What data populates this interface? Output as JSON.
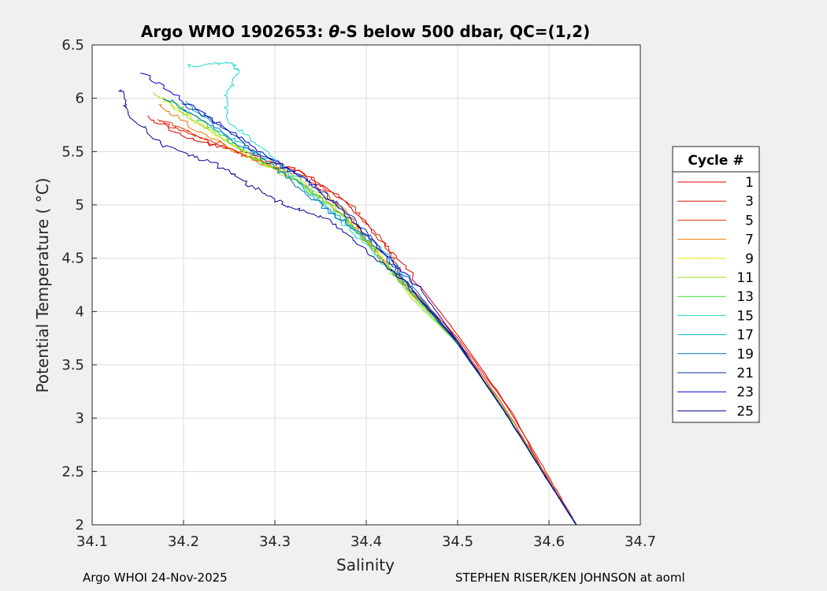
{
  "chart_data": {
    "type": "line",
    "title_prefix": "Argo WMO 1902653: ",
    "title_theta": "θ",
    "title_suffix": "-S below 500 dbar,  QC=(1,2)",
    "xlabel": "Salinity",
    "ylabel": "Potential Temperature ( °C)",
    "xlim": [
      34.1,
      34.7
    ],
    "ylim": [
      2,
      6.5
    ],
    "x_ticks": [
      34.1,
      34.2,
      34.3,
      34.4,
      34.5,
      34.6,
      34.7
    ],
    "x_tick_labels": [
      "34.1",
      "34.2",
      "34.3",
      "34.4",
      "34.5",
      "34.6",
      "34.7"
    ],
    "y_ticks": [
      2,
      2.5,
      3,
      3.5,
      4,
      4.5,
      5,
      5.5,
      6,
      6.5
    ],
    "y_tick_labels": [
      "2",
      "2.5",
      "3",
      "3.5",
      "4",
      "4.5",
      "5",
      "5.5",
      "6",
      "6.5"
    ],
    "grid": true,
    "legend_title": "Cycle #",
    "legend_position": "right-outside",
    "series": [
      {
        "name": "1",
        "color": "#e00000",
        "points": [
          [
            34.16,
            5.83
          ],
          [
            34.205,
            5.62
          ],
          [
            34.26,
            5.5
          ],
          [
            34.32,
            5.35
          ],
          [
            34.37,
            5.1
          ],
          [
            34.41,
            4.72
          ],
          [
            34.445,
            4.4
          ],
          [
            34.5,
            3.78
          ],
          [
            34.56,
            3.05
          ],
          [
            34.6,
            2.4
          ],
          [
            34.63,
            2.0
          ]
        ]
      },
      {
        "name": "3",
        "color": "#dd1a00",
        "points": [
          [
            34.17,
            5.8
          ],
          [
            34.215,
            5.64
          ],
          [
            34.27,
            5.45
          ],
          [
            34.33,
            5.3
          ],
          [
            34.38,
            5.02
          ],
          [
            34.42,
            4.65
          ],
          [
            34.44,
            4.3
          ],
          [
            34.5,
            3.75
          ],
          [
            34.555,
            3.1
          ],
          [
            34.6,
            2.45
          ],
          [
            34.63,
            2.0
          ]
        ]
      },
      {
        "name": "5",
        "color": "#e83000",
        "points": [
          [
            34.18,
            5.78
          ],
          [
            34.225,
            5.62
          ],
          [
            34.28,
            5.42
          ],
          [
            34.335,
            5.25
          ],
          [
            34.375,
            4.95
          ],
          [
            34.405,
            4.62
          ],
          [
            34.435,
            4.3
          ],
          [
            34.49,
            3.85
          ],
          [
            34.55,
            3.12
          ],
          [
            34.6,
            2.42
          ],
          [
            34.63,
            2.0
          ]
        ]
      },
      {
        "name": "7",
        "color": "#f07800",
        "points": [
          [
            34.17,
            5.95
          ],
          [
            34.215,
            5.7
          ],
          [
            34.27,
            5.45
          ],
          [
            34.33,
            5.2
          ],
          [
            34.37,
            4.95
          ],
          [
            34.405,
            4.62
          ],
          [
            34.44,
            4.25
          ],
          [
            34.495,
            3.78
          ],
          [
            34.55,
            3.1
          ],
          [
            34.6,
            2.4
          ],
          [
            34.63,
            2.0
          ]
        ]
      },
      {
        "name": "9",
        "color": "#f0e000",
        "points": [
          [
            34.175,
            6.0
          ],
          [
            34.22,
            5.75
          ],
          [
            34.275,
            5.45
          ],
          [
            34.33,
            5.22
          ],
          [
            34.375,
            4.95
          ],
          [
            34.41,
            4.6
          ],
          [
            34.45,
            4.15
          ],
          [
            34.5,
            3.7
          ],
          [
            34.55,
            3.08
          ],
          [
            34.6,
            2.4
          ],
          [
            34.63,
            2.0
          ]
        ]
      },
      {
        "name": "11",
        "color": "#90e020",
        "points": [
          [
            34.165,
            6.05
          ],
          [
            34.21,
            5.8
          ],
          [
            34.26,
            5.52
          ],
          [
            34.31,
            5.28
          ],
          [
            34.36,
            5.0
          ],
          [
            34.4,
            4.68
          ],
          [
            34.45,
            4.12
          ],
          [
            34.5,
            3.7
          ],
          [
            34.55,
            3.1
          ],
          [
            34.6,
            2.4
          ],
          [
            34.63,
            2.0
          ]
        ]
      },
      {
        "name": "13",
        "color": "#30e030",
        "points": [
          [
            34.18,
            6.0
          ],
          [
            34.22,
            5.78
          ],
          [
            34.27,
            5.48
          ],
          [
            34.32,
            5.25
          ],
          [
            34.365,
            4.98
          ],
          [
            34.4,
            4.66
          ],
          [
            34.44,
            4.25
          ],
          [
            34.5,
            3.7
          ],
          [
            34.55,
            3.08
          ],
          [
            34.6,
            2.4
          ],
          [
            34.63,
            2.0
          ]
        ]
      },
      {
        "name": "15",
        "color": "#20d8c8",
        "points": [
          [
            34.205,
            6.3
          ],
          [
            34.25,
            6.34
          ],
          [
            34.26,
            6.26
          ],
          [
            34.245,
            6.0
          ],
          [
            34.25,
            5.78
          ],
          [
            34.3,
            5.45
          ],
          [
            34.35,
            5.05
          ],
          [
            34.39,
            4.7
          ],
          [
            34.44,
            4.28
          ],
          [
            34.5,
            3.7
          ],
          [
            34.55,
            3.08
          ],
          [
            34.6,
            2.4
          ],
          [
            34.63,
            2.0
          ]
        ]
      },
      {
        "name": "17",
        "color": "#00b0c0",
        "points": [
          [
            34.2,
            5.98
          ],
          [
            34.25,
            5.62
          ],
          [
            34.3,
            5.4
          ],
          [
            34.34,
            5.1
          ],
          [
            34.38,
            4.82
          ],
          [
            34.42,
            4.55
          ],
          [
            34.45,
            4.2
          ],
          [
            34.5,
            3.7
          ],
          [
            34.55,
            3.08
          ],
          [
            34.6,
            2.4
          ],
          [
            34.63,
            2.0
          ]
        ]
      },
      {
        "name": "19",
        "color": "#0070c0",
        "points": [
          [
            34.18,
            6.0
          ],
          [
            34.22,
            5.8
          ],
          [
            34.27,
            5.52
          ],
          [
            34.31,
            5.28
          ],
          [
            34.35,
            5.0
          ],
          [
            34.4,
            4.7
          ],
          [
            34.45,
            4.25
          ],
          [
            34.5,
            3.7
          ],
          [
            34.55,
            3.08
          ],
          [
            34.6,
            2.4
          ],
          [
            34.63,
            2.0
          ]
        ]
      },
      {
        "name": "21",
        "color": "#0030a0",
        "points": [
          [
            34.2,
            5.95
          ],
          [
            34.24,
            5.75
          ],
          [
            34.28,
            5.5
          ],
          [
            34.33,
            5.25
          ],
          [
            34.37,
            5.0
          ],
          [
            34.41,
            4.65
          ],
          [
            34.44,
            4.3
          ],
          [
            34.5,
            3.7
          ],
          [
            34.55,
            3.08
          ],
          [
            34.6,
            2.4
          ],
          [
            34.63,
            2.0
          ]
        ]
      },
      {
        "name": "23",
        "color": "#0000d0",
        "points": [
          [
            34.155,
            6.25
          ],
          [
            34.2,
            5.98
          ],
          [
            34.25,
            5.7
          ],
          [
            34.3,
            5.42
          ],
          [
            34.34,
            5.2
          ],
          [
            34.38,
            4.9
          ],
          [
            34.42,
            4.55
          ],
          [
            34.46,
            4.2
          ],
          [
            34.5,
            3.72
          ],
          [
            34.55,
            3.08
          ],
          [
            34.6,
            2.4
          ],
          [
            34.63,
            2.0
          ]
        ]
      },
      {
        "name": "25",
        "color": "#000090",
        "points": [
          [
            34.13,
            6.08
          ],
          [
            34.14,
            5.85
          ],
          [
            34.18,
            5.55
          ],
          [
            34.23,
            5.4
          ],
          [
            34.27,
            5.2
          ],
          [
            34.31,
            5.0
          ],
          [
            34.36,
            4.85
          ],
          [
            34.4,
            4.58
          ],
          [
            34.44,
            4.3
          ],
          [
            34.5,
            3.72
          ],
          [
            34.55,
            3.08
          ],
          [
            34.6,
            2.4
          ],
          [
            34.63,
            2.0
          ]
        ]
      }
    ]
  },
  "footer": {
    "left": "Argo WHOI 24-Nov-2025",
    "right": "STEPHEN RISER/KEN JOHNSON at aoml"
  }
}
